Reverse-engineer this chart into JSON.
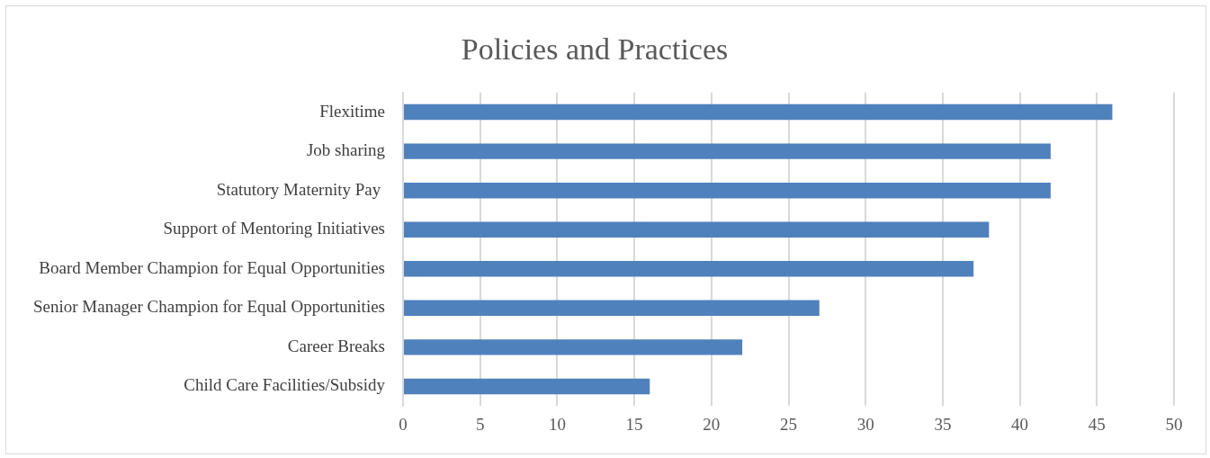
{
  "chart_data": {
    "type": "bar",
    "orientation": "horizontal",
    "title": "Policies and Practices",
    "categories": [
      "Flexitime",
      "Job sharing",
      "Statutory Maternity Pay ",
      "Support of Mentoring Initiatives",
      "Board Member Champion for Equal Opportunities",
      "Senior Manager Champion for Equal Opportunities",
      "Career Breaks",
      "Child Care Facilities/Subsidy"
    ],
    "values": [
      46,
      42,
      42,
      38,
      37,
      27,
      22,
      16
    ],
    "color": "#4f81bd",
    "xlim": [
      0,
      50
    ],
    "xticks": [
      0,
      5,
      10,
      15,
      20,
      25,
      30,
      35,
      40,
      45,
      50
    ],
    "grid": "x",
    "legend": false
  }
}
